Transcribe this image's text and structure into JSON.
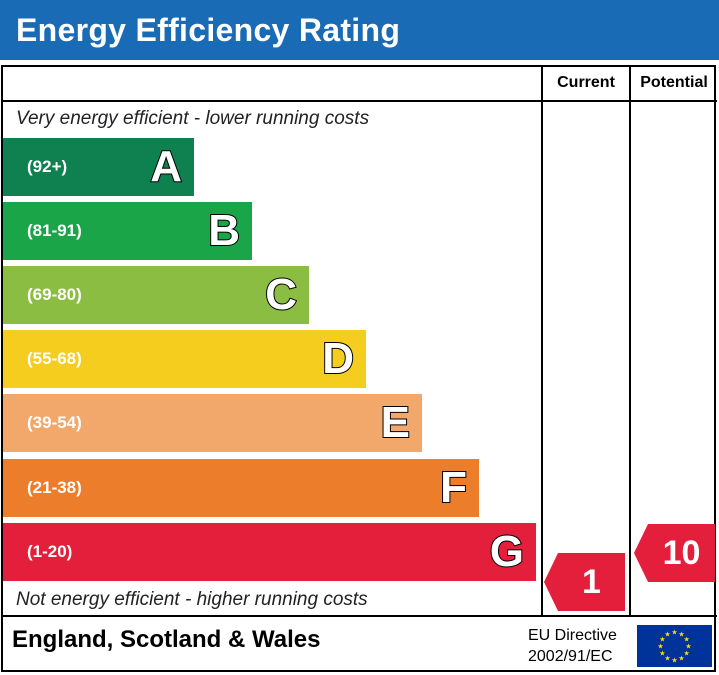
{
  "header": {
    "title": "Energy Efficiency Rating"
  },
  "columns": {
    "current": "Current",
    "potential": "Potential"
  },
  "notes": {
    "top": "Very energy efficient - lower running costs",
    "bottom": "Not energy efficient - higher running costs"
  },
  "chart_data": {
    "type": "bar",
    "title": "Energy Efficiency Rating",
    "bands": [
      {
        "letter": "A",
        "range": "(92+)",
        "color": "#0f8050"
      },
      {
        "letter": "B",
        "range": "(81-91)",
        "color": "#1aa548"
      },
      {
        "letter": "C",
        "range": "(69-80)",
        "color": "#8cbd43"
      },
      {
        "letter": "D",
        "range": "(55-68)",
        "color": "#f4cd1f"
      },
      {
        "letter": "E",
        "range": "(39-54)",
        "color": "#f2a86a"
      },
      {
        "letter": "F",
        "range": "(21-38)",
        "color": "#ec7d2a"
      },
      {
        "letter": "G",
        "range": "(1-20)",
        "color": "#e41f3c"
      }
    ],
    "current_rating": {
      "value": "1",
      "band": "G"
    },
    "potential_rating": {
      "value": "10",
      "band": "G"
    }
  },
  "footer": {
    "region": "England, Scotland & Wales",
    "directive_line1": "EU Directive",
    "directive_line2": "2002/91/EC"
  },
  "colors": {
    "header_blue": "#1a6bb5",
    "flag_blue": "#003399",
    "star_yellow": "#ffdd00",
    "rating_red": "#e41f3c"
  },
  "icons": {
    "flag": "eu-flag-icon"
  }
}
